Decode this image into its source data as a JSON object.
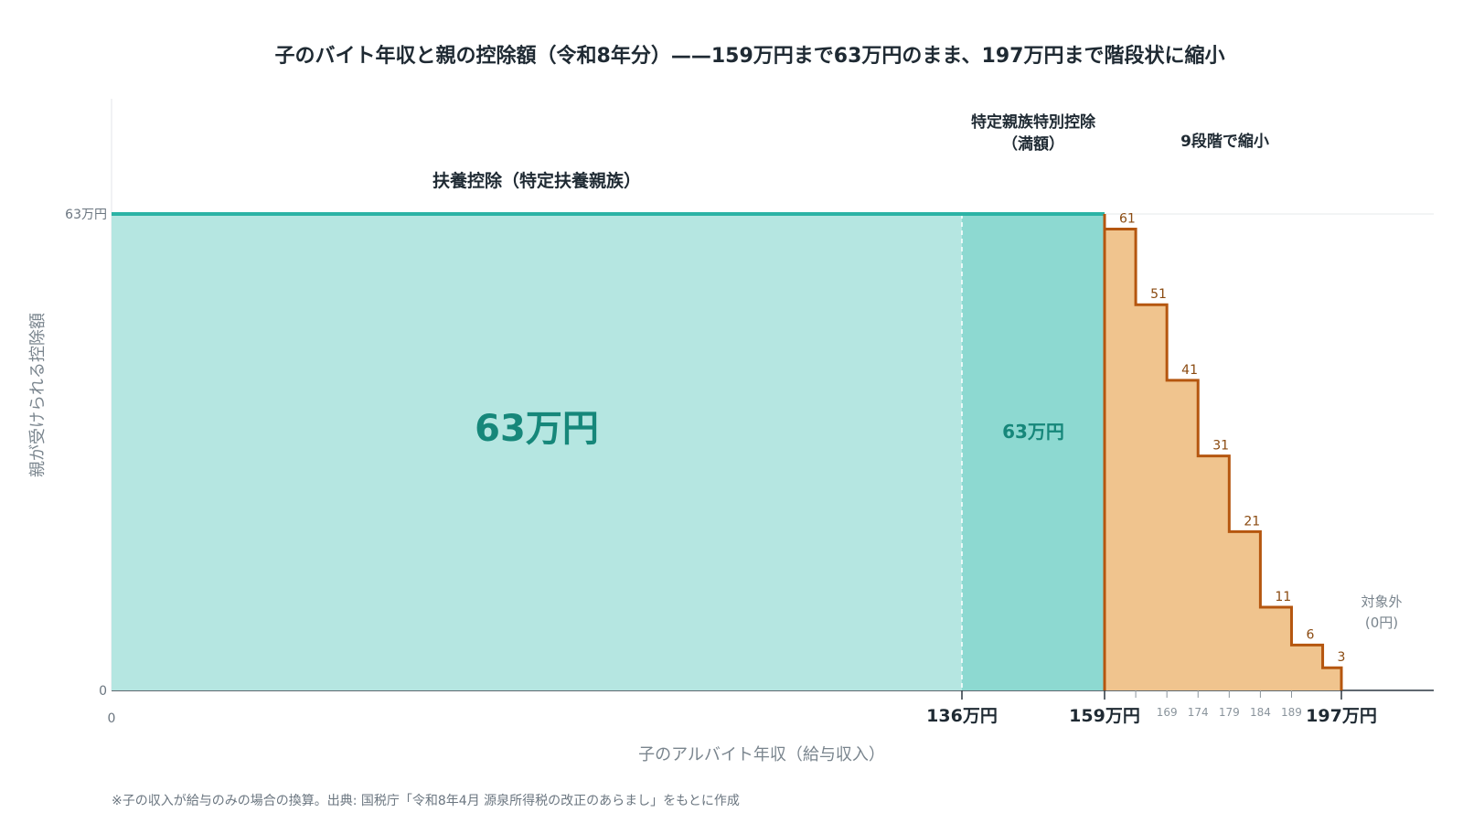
{
  "title": "子のバイト年収と親の控除額（令和8年分）——159万円まで63万円のまま、197万円まで階段状に縮小",
  "footnote": "※子の収入が給与のみの場合の換算。出典: 国税庁「令和8年4月 源泉所得税の改正のあらまし」をもとに作成",
  "colors": {
    "fuyo_fill": "#b5e6e1",
    "tokutei_fill": "#8dd9d1",
    "step_fill": "#f0c48e",
    "step_line": "#b5560f",
    "top_line": "#2bb3a5",
    "value_text": "#16877a"
  },
  "chart_data": {
    "type": "area",
    "title": "子のバイト年収と親の控除額（令和8年分）——159万円まで63万円のまま、197万円まで階段状に縮小",
    "xlabel": "子のアルバイト年収（給与収入）",
    "ylabel": "親が受けられる控除額",
    "ylim": [
      0,
      63
    ],
    "y_ticks": [
      {
        "value": 0,
        "label": "0"
      },
      {
        "value": 63,
        "label": "63万円"
      }
    ],
    "x_ticks": [
      {
        "value": 0,
        "label": "0",
        "style": "origin"
      },
      {
        "value": 136,
        "label": "136万円",
        "style": "major"
      },
      {
        "value": 159,
        "label": "159万円",
        "style": "major"
      },
      {
        "value": 169,
        "label": "169",
        "style": "minor"
      },
      {
        "value": 174,
        "label": "174",
        "style": "minor"
      },
      {
        "value": 179,
        "label": "179",
        "style": "minor"
      },
      {
        "value": 184,
        "label": "184",
        "style": "minor"
      },
      {
        "value": 189,
        "label": "189",
        "style": "minor"
      },
      {
        "value": 197,
        "label": "197万円",
        "style": "major"
      }
    ],
    "zones": [
      {
        "name": "扶養控除（特定扶養親族）",
        "x_start": 0,
        "x_end": 136,
        "value": 63,
        "value_label": "63万円"
      },
      {
        "name": "特定親族特別控除",
        "sub": "（満額）",
        "x_start": 136,
        "x_end": 159,
        "value": 63,
        "value_label": "63万円"
      }
    ],
    "steps_label": "9段階で縮小",
    "steps": [
      {
        "x_start": 159,
        "x_end": 164,
        "value": 61,
        "label": "61"
      },
      {
        "x_start": 164,
        "x_end": 169,
        "value": 51,
        "label": "51"
      },
      {
        "x_start": 169,
        "x_end": 174,
        "value": 41,
        "label": "41"
      },
      {
        "x_start": 174,
        "x_end": 179,
        "value": 31,
        "label": "31"
      },
      {
        "x_start": 179,
        "x_end": 184,
        "value": 21,
        "label": "21"
      },
      {
        "x_start": 184,
        "x_end": 189,
        "value": 11,
        "label": "11"
      },
      {
        "x_start": 189,
        "x_end": 194,
        "value": 6,
        "label": "6"
      },
      {
        "x_start": 194,
        "x_end": 197,
        "value": 3,
        "label": "3"
      }
    ],
    "outside_label": [
      "対象外",
      "(0円)"
    ]
  }
}
